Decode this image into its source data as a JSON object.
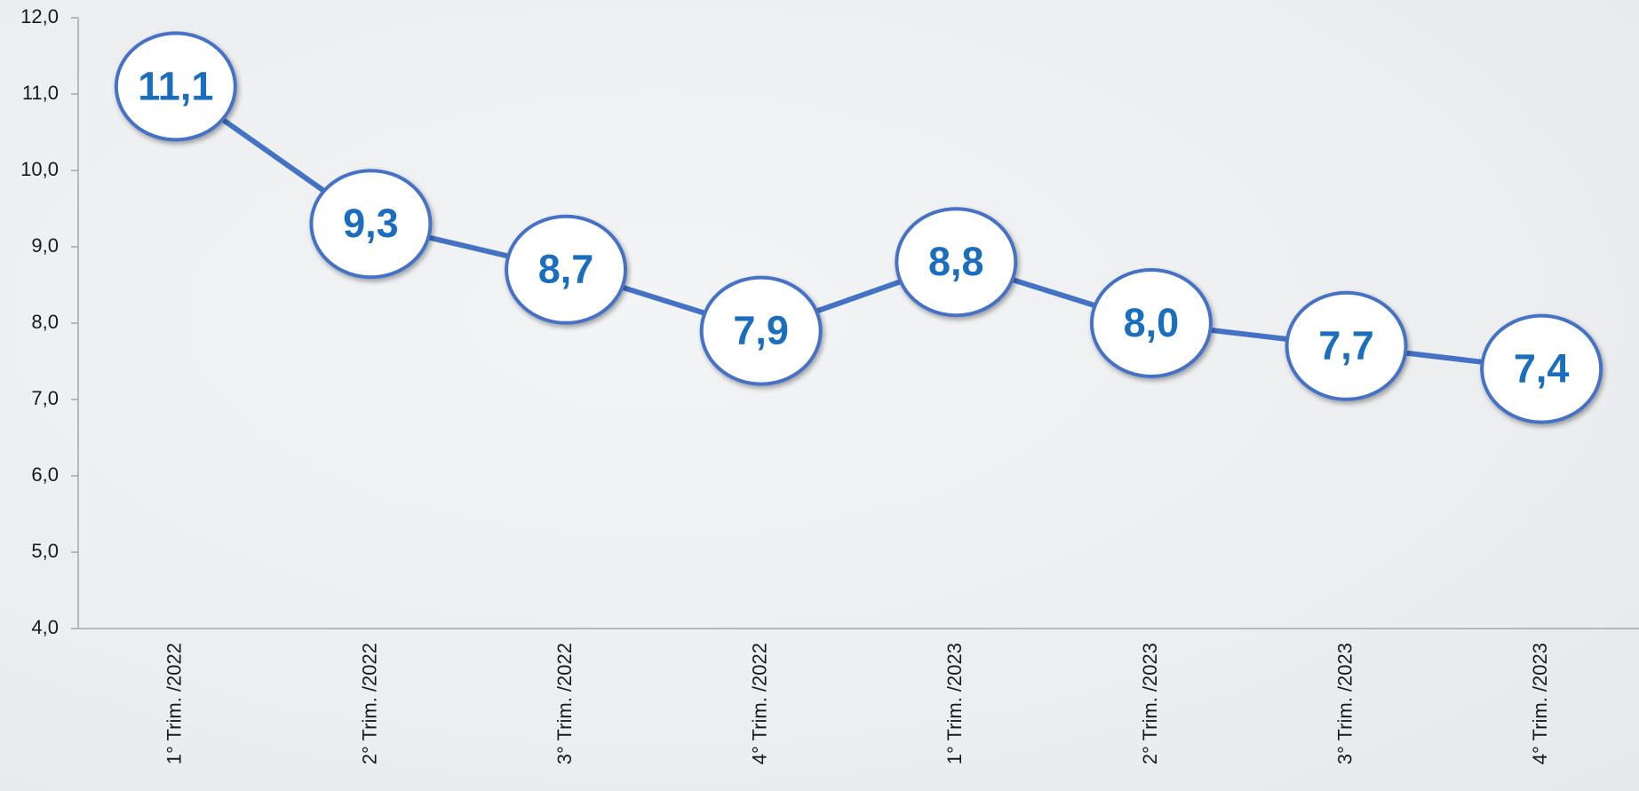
{
  "chart_data": {
    "type": "line",
    "categories": [
      "1° Trim. /2022",
      "2° Trim. /2022",
      "3° Trim. /2022",
      "4° Trim. /2022",
      "1° Trim. /2023",
      "2° Trim. /2023",
      "3° Trim. /2023",
      "4° Trim. /2023"
    ],
    "series": [
      {
        "color": "#4472c4",
        "values": [
          11.1,
          9.3,
          8.7,
          7.9,
          8.8,
          8.0,
          7.7,
          7.4
        ],
        "value_labels": [
          "11,1",
          "9,3",
          "8,7",
          "7,9",
          "8,8",
          "8,0",
          "7,7",
          "7,4"
        ]
      }
    ],
    "ylim": [
      4,
      12
    ],
    "yticks": [
      {
        "value": 4,
        "label": "4,0"
      },
      {
        "value": 5,
        "label": "5,0"
      },
      {
        "value": 6,
        "label": "6,0"
      },
      {
        "value": 7,
        "label": "7,0"
      },
      {
        "value": 8,
        "label": "8,0"
      },
      {
        "value": 9,
        "label": "9,0"
      },
      {
        "value": 10,
        "label": "10,0"
      },
      {
        "value": 11,
        "label": "11,0"
      },
      {
        "value": 12,
        "label": "12,0"
      }
    ]
  }
}
